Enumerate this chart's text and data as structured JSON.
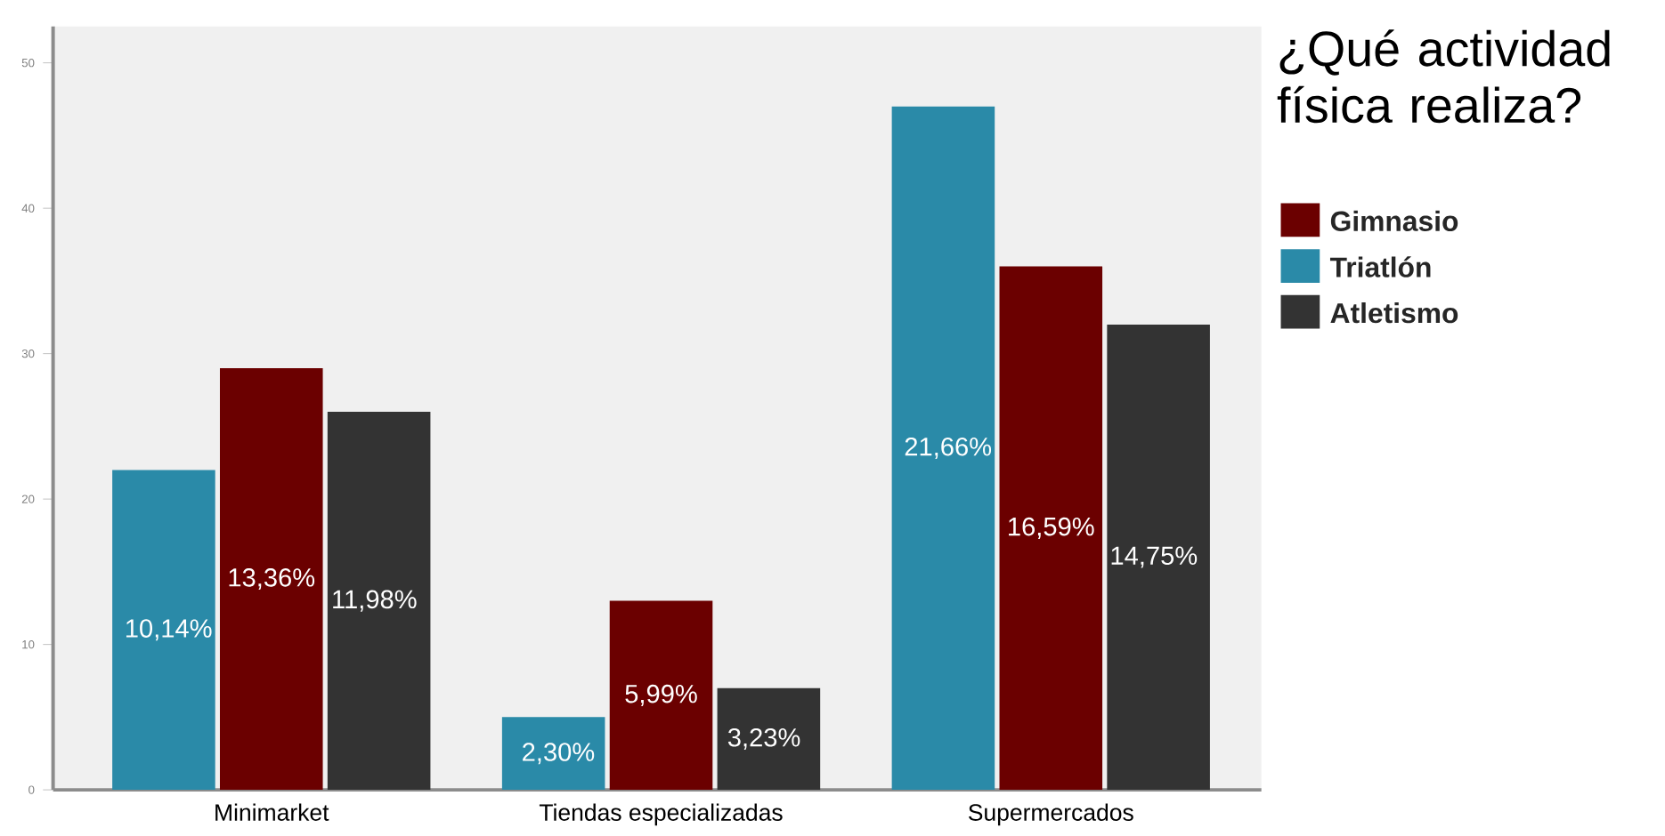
{
  "chart_data": {
    "type": "bar",
    "title": "¿Qué actividad física realiza?",
    "categories": [
      "Minimarket",
      "Tiendas especializadas",
      "Supermercados"
    ],
    "series": [
      {
        "name": "Triatlón",
        "color": "#2a8aa8",
        "values": [
          22,
          5,
          47
        ]
      },
      {
        "name": "Gimnasio",
        "color": "#6b0000",
        "values": [
          29,
          13,
          36
        ]
      },
      {
        "name": "Atletismo",
        "color": "#333333",
        "values": [
          26,
          7,
          32
        ]
      }
    ],
    "annotations": [
      "10,14%",
      "2,30%",
      "21,66%",
      "13,36%",
      "5,99%",
      "16,59%",
      "11,98%",
      "3,23%",
      "14,75%"
    ],
    "ylim": [
      0,
      52.5
    ],
    "yticks": [
      0,
      10,
      20,
      30,
      40,
      50
    ],
    "grid": false,
    "legend": "right"
  }
}
